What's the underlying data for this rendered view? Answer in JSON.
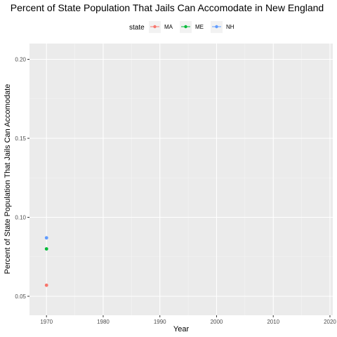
{
  "chart_data": {
    "type": "scatter",
    "title": "Percent of State Population That Jails Can Accomodate in New England",
    "xlabel": "Year",
    "ylabel": "Percent of State Population That Jails Can Accomodate",
    "xlim": [
      1967,
      2020.5
    ],
    "ylim": [
      0.038,
      0.21
    ],
    "x_ticks": [
      1970,
      1980,
      1990,
      2000,
      2010,
      2020
    ],
    "x_tick_labels": [
      "1970",
      "1980",
      "1990",
      "2000",
      "2010",
      "2020"
    ],
    "y_ticks": [
      0.05,
      0.1,
      0.15,
      0.2
    ],
    "y_tick_labels": [
      "0.05",
      "0.10",
      "0.15",
      "0.20"
    ],
    "grid": true,
    "legend": {
      "title": "state",
      "position": "top"
    },
    "series": [
      {
        "name": "MA",
        "color": "#F8766D",
        "x": [
          1970
        ],
        "y": [
          0.057
        ]
      },
      {
        "name": "ME",
        "color": "#00BA38",
        "x": [
          1970
        ],
        "y": [
          0.08
        ]
      },
      {
        "name": "NH",
        "color": "#619CFF",
        "x": [
          1970
        ],
        "y": [
          0.087
        ]
      }
    ]
  }
}
